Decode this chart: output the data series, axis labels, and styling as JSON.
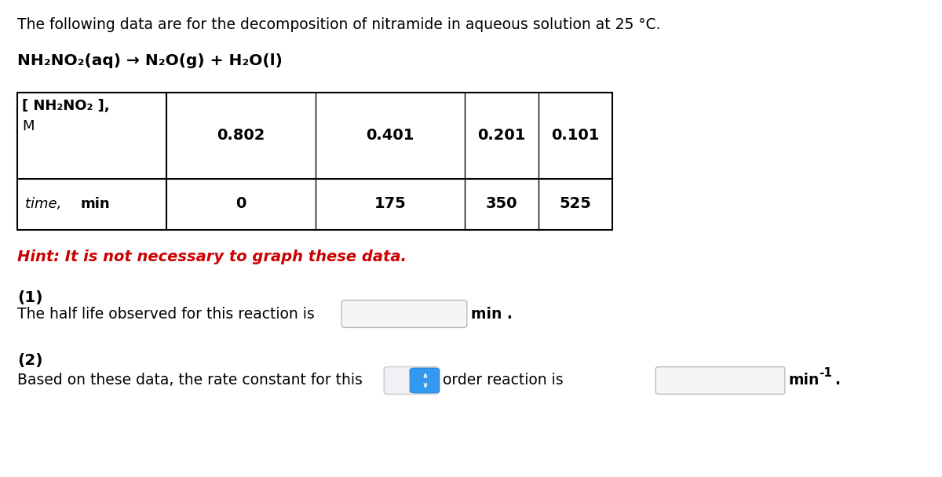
{
  "background_color": "#ffffff",
  "intro_text": "The following data are for the decomposition of nitramide in aqueous solution at 25 °C.",
  "equation": "NH₂NO₂(aq) → N₂O(g) + H₂O(l)",
  "table": {
    "header_conc": "[ NH₂NO₂ ],",
    "header_M": "M",
    "conc_values": [
      "0.802",
      "0.401",
      "0.201",
      "0.101"
    ],
    "time_italic": "time, ",
    "time_bold": "min",
    "time_values": [
      "0",
      "175",
      "350",
      "525"
    ]
  },
  "hint_text": "Hint: It is not necessary to graph these data.",
  "hint_color": "#cc0000",
  "q1_label": "(1)",
  "q1_text": "The half life observed for this reaction is",
  "q1_unit": "min .",
  "q2_label": "(2)",
  "q2_text": "Based on these data, the rate constant for this",
  "q2_mid": "order reaction is",
  "q2_unit": "min",
  "q2_exp": "-1",
  "q2_dot": ".",
  "input_box_color": "#f5f5f8",
  "input_border_color": "#bbbbbb",
  "dropdown_bg": "#3399ee",
  "dropdown_border": "#2277cc"
}
